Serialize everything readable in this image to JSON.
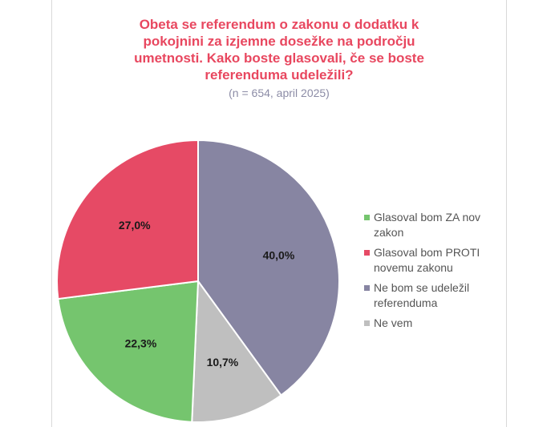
{
  "chart_data": {
    "type": "pie",
    "title_lines": [
      "Obeta se referendum o zakonu o dodatku k",
      "pokojnini za izjemne dosežke na področju",
      "umetnosti. Kako boste glasovali, če se boste",
      "referenduma udeležili?"
    ],
    "subtitle": "(n = 654, april 2025)",
    "slices": [
      {
        "name": "Ne bom se udeležil referenduma",
        "legend_lines": [
          "Ne bom se udeležil",
          "referenduma"
        ],
        "value": 40.0,
        "label": "40,0%",
        "color": "#8785a2"
      },
      {
        "name": "Ne vem",
        "legend_lines": [
          "Ne vem"
        ],
        "value": 10.7,
        "label": "10,7%",
        "color": "#bfbfbf"
      },
      {
        "name": "Glasoval bom ZA nov zakon",
        "legend_lines": [
          "Glasoval bom ZA nov",
          "zakon"
        ],
        "value": 22.3,
        "label": "22,3%",
        "color": "#75c56e"
      },
      {
        "name": "Glasoval bom PROTI novemu zakonu",
        "legend_lines": [
          "Glasoval bom PROTI",
          "novemu zakonu"
        ],
        "value": 27.0,
        "label": "27,0%",
        "color": "#e64a65"
      }
    ],
    "legend_order": [
      2,
      3,
      0,
      1
    ],
    "legend_position": "right",
    "start_angle_deg": 0,
    "direction": "clockwise"
  }
}
